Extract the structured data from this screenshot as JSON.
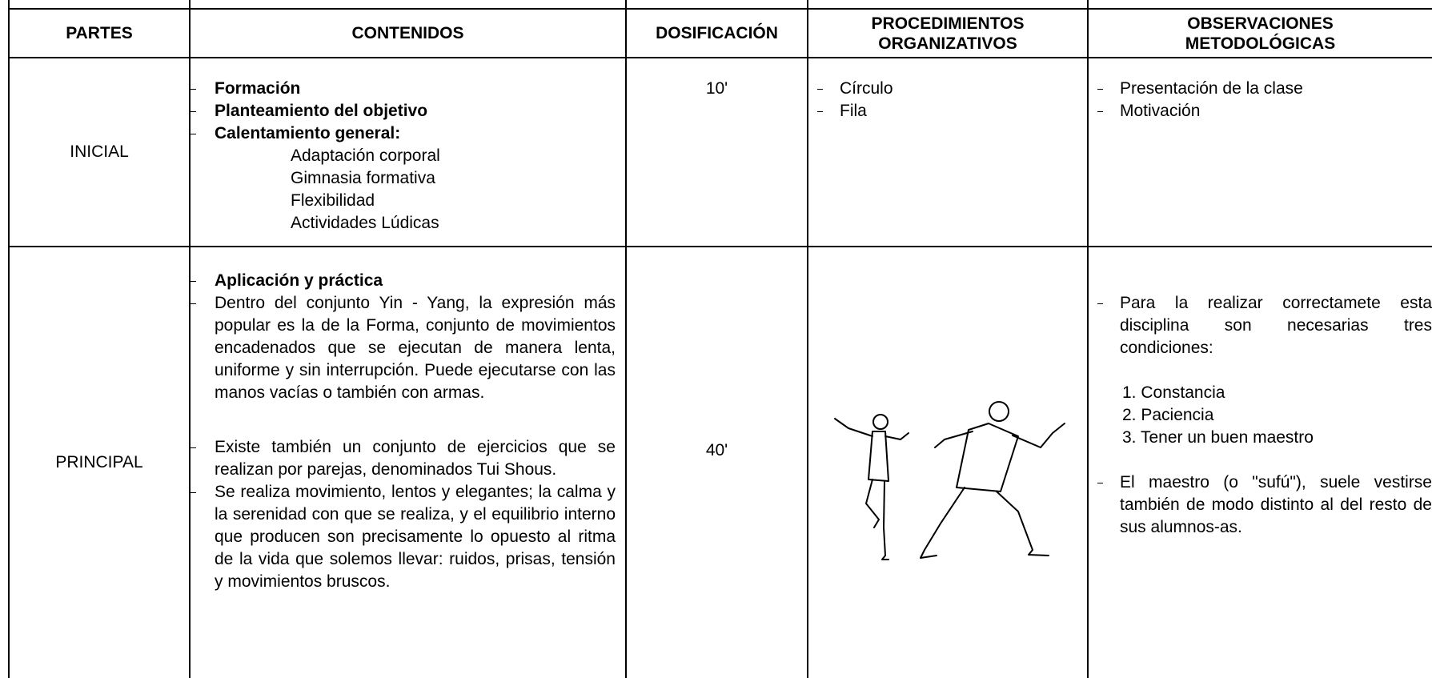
{
  "table": {
    "headers": [
      "PARTES",
      "CONTENIDOS",
      "DOSIFICACIÓN",
      "PROCEDIMIENTOS ORGANIZATIVOS",
      "OBSERVACIONES METODOLÓGICAS"
    ],
    "rows": [
      {
        "parte": "INICIAL",
        "contenidos": {
          "bold": [
            "Formación",
            "Planteamiento del objetivo",
            "Calentamiento general:"
          ],
          "sub": [
            "Adaptación corporal",
            "Gimnasia formativa",
            "Flexibilidad",
            "Actividades Lúdicas"
          ]
        },
        "dosificacion": "10'",
        "procedimientos": [
          "Círculo",
          "Fila"
        ],
        "observaciones": [
          "Presentación de la clase",
          "Motivación"
        ]
      },
      {
        "parte": "PRINCIPAL",
        "contenidos": {
          "bold": [
            "Aplicación y práctica"
          ],
          "paragraphs": [
            "Dentro del conjunto Yin - Yang, la expresión más popular es la de la Forma, conjunto de movimientos encadenados que se ejecutan de manera lenta, uniforme y sin interrupción. Puede ejecutarse con las manos vacías o también con armas.",
            "Existe también un conjunto de ejercicios que se realizan por parejas, denominados Tui Shous.",
            "Se realiza movimiento, lentos y elegantes; la calma y la serenidad con que se realiza, y el equilibrio interno que producen son precisamente lo opuesto al ritma de la vida que solemos llevar: ruidos, prisas, tensión y movimientos bruscos."
          ]
        },
        "dosificacion": "40'",
        "observaciones": {
          "paragraphs": [
            "Para la realizar correctamete esta disciplina son necesarias tres condiciones:",
            "El maestro (o \"sufú\"), suele vestirse también de modo distinto al del resto de sus alumnos-as."
          ],
          "steps": [
            "1. Constancia",
            "2. Paciencia",
            "3. Tener un buen maestro"
          ]
        }
      }
    ]
  }
}
